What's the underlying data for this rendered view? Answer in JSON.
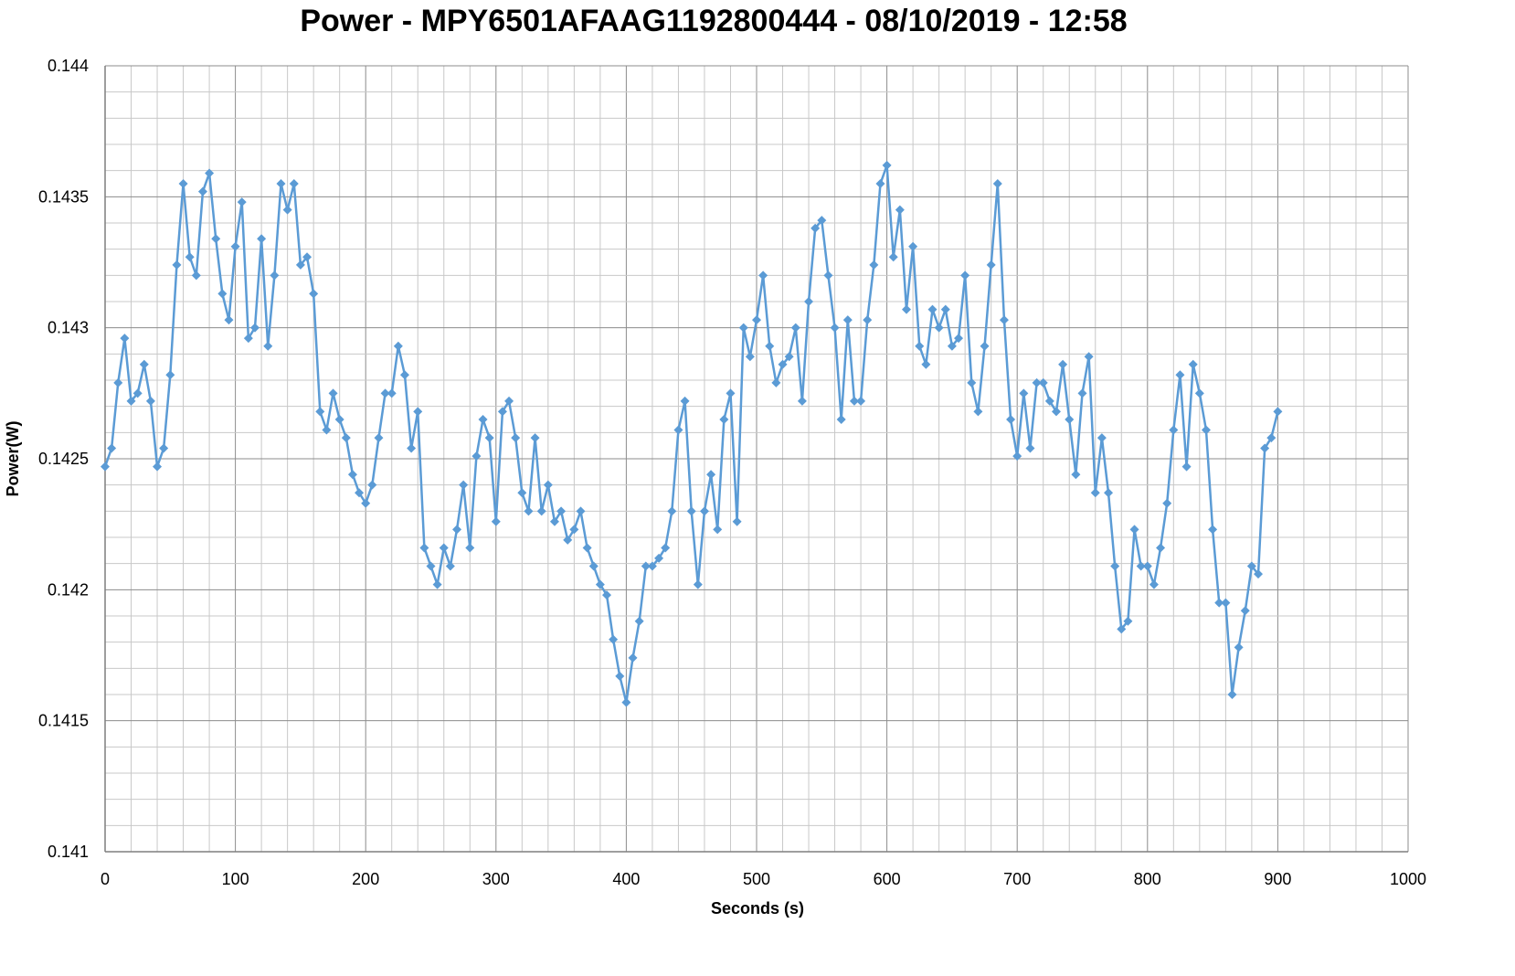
{
  "chart_data": {
    "type": "line",
    "title": "Power - MPY6501AFAAG1192800444 - 08/10/2019 - 12:58",
    "xlabel": "Seconds (s)",
    "ylabel": "Power(W)",
    "xlim": [
      0,
      1000
    ],
    "ylim": [
      0.141,
      0.144
    ],
    "x_major_step": 100,
    "x_minor_step": 20,
    "y_major_step": 0.0005,
    "y_minor_step": 0.0001,
    "grid": true,
    "legend": "none",
    "marker": "diamond",
    "x_ticks": [
      "0",
      "100",
      "200",
      "300",
      "400",
      "500",
      "600",
      "700",
      "800",
      "900",
      "1000"
    ],
    "y_ticks": [
      "0.141",
      "0.1415",
      "0.142",
      "0.1425",
      "0.143",
      "0.1435",
      "0.144"
    ],
    "series_color": "#5b9bd5",
    "x_step": 5,
    "values": [
      0.14247,
      0.14254,
      0.14279,
      0.14296,
      0.14272,
      0.14275,
      0.14286,
      0.14272,
      0.14247,
      0.14254,
      0.14282,
      0.14324,
      0.14355,
      0.14327,
      0.1432,
      0.14352,
      0.14359,
      0.14334,
      0.14313,
      0.14303,
      0.14331,
      0.14348,
      0.14296,
      0.143,
      0.14334,
      0.14293,
      0.1432,
      0.14355,
      0.14345,
      0.14355,
      0.14324,
      0.14327,
      0.14313,
      0.14268,
      0.14261,
      0.14275,
      0.14265,
      0.14258,
      0.14244,
      0.14237,
      0.14233,
      0.1424,
      0.14258,
      0.14275,
      0.14275,
      0.14293,
      0.14282,
      0.14254,
      0.14268,
      0.14216,
      0.14209,
      0.14202,
      0.14216,
      0.14209,
      0.14223,
      0.1424,
      0.14216,
      0.14251,
      0.14265,
      0.14258,
      0.14226,
      0.14268,
      0.14272,
      0.14258,
      0.14237,
      0.1423,
      0.14258,
      0.1423,
      0.1424,
      0.14226,
      0.1423,
      0.14219,
      0.14223,
      0.1423,
      0.14216,
      0.14209,
      0.14202,
      0.14198,
      0.14181,
      0.14167,
      0.14157,
      0.14174,
      0.14188,
      0.14209,
      0.14209,
      0.14212,
      0.14216,
      0.1423,
      0.14261,
      0.14272,
      0.1423,
      0.14202,
      0.1423,
      0.14244,
      0.14223,
      0.14265,
      0.14275,
      0.14226,
      0.143,
      0.14289,
      0.14303,
      0.1432,
      0.14293,
      0.14279,
      0.14286,
      0.14289,
      0.143,
      0.14272,
      0.1431,
      0.14338,
      0.14341,
      0.1432,
      0.143,
      0.14265,
      0.14303,
      0.14272,
      0.14272,
      0.14303,
      0.14324,
      0.14355,
      0.14362,
      0.14327,
      0.14345,
      0.14307,
      0.14331,
      0.14293,
      0.14286,
      0.14307,
      0.143,
      0.14307,
      0.14293,
      0.14296,
      0.1432,
      0.14279,
      0.14268,
      0.14293,
      0.14324,
      0.14355,
      0.14303,
      0.14265,
      0.14251,
      0.14275,
      0.14254,
      0.14279,
      0.14279,
      0.14272,
      0.14268,
      0.14286,
      0.14265,
      0.14244,
      0.14275,
      0.14289,
      0.14237,
      0.14258,
      0.14237,
      0.14209,
      0.14185,
      0.14188,
      0.14223,
      0.14209,
      0.14209,
      0.14202,
      0.14216,
      0.14233,
      0.14261,
      0.14282,
      0.14247,
      0.14286,
      0.14275,
      0.14261,
      0.14223,
      0.14195,
      0.14195,
      0.1416,
      0.14178,
      0.14192,
      0.14209,
      0.14206,
      0.14254,
      0.14258,
      0.14268
    ]
  }
}
